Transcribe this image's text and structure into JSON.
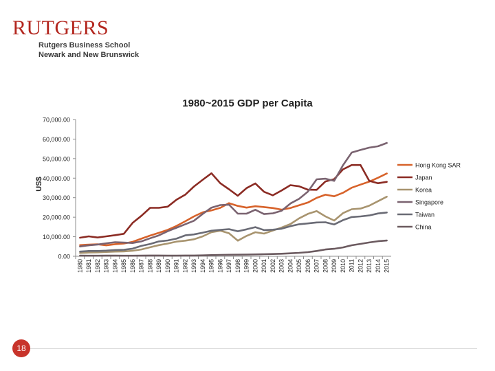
{
  "header": {
    "logo_text": "RUTGERS",
    "school_line1": "Rutgers Business School",
    "school_line2": "Newark and New Brunswick"
  },
  "slide_number": "18",
  "chart_data": {
    "type": "line",
    "title": "1980~2015 GDP per Capita",
    "ylabel": "US$",
    "xlabel": "",
    "ylim": [
      0,
      70000
    ],
    "yticks": [
      "0.00",
      "10,000.00",
      "20,000.00",
      "30,000.00",
      "40,000.00",
      "50,000.00",
      "60,000.00",
      "70,000.00"
    ],
    "grid": false,
    "legend_position": "right",
    "categories": [
      "1980",
      "1981",
      "1982",
      "1983",
      "1984",
      "1985",
      "1986",
      "1987",
      "1988",
      "1989",
      "1990",
      "1991",
      "1992",
      "1993",
      "1994",
      "1995",
      "1996",
      "1997",
      "1998",
      "1999",
      "2000",
      "2001",
      "2002",
      "2003",
      "2004",
      "2005",
      "2006",
      "2007",
      "2008",
      "2009",
      "2010",
      "2011",
      "2012",
      "2013",
      "2014",
      "2015"
    ],
    "series": [
      {
        "name": "Hong Kong SAR",
        "color": "#d7622a",
        "values": [
          5700,
          5990,
          6130,
          5600,
          6200,
          6500,
          7400,
          9000,
          10600,
          12000,
          13500,
          15500,
          17900,
          20400,
          22500,
          23500,
          24800,
          27200,
          25800,
          24900,
          25600,
          25200,
          24700,
          23900,
          24700,
          26100,
          27500,
          29900,
          31500,
          30700,
          32500,
          35100,
          36700,
          38200,
          40200,
          42400
        ]
      },
      {
        "name": "Japan",
        "color": "#8b2b23",
        "values": [
          9500,
          10200,
          9600,
          10200,
          10800,
          11500,
          17100,
          20700,
          24800,
          24800,
          25400,
          28900,
          31500,
          35700,
          39200,
          42500,
          37400,
          34300,
          31000,
          34900,
          37300,
          33000,
          31200,
          33700,
          36400,
          35800,
          34100,
          34000,
          38300,
          39500,
          44500,
          46700,
          46700,
          38600,
          37400,
          38100
        ]
      },
      {
        "name": "Korea",
        "color": "#a8946f",
        "values": [
          1700,
          1900,
          2000,
          2200,
          2400,
          2500,
          2800,
          3500,
          4600,
          5700,
          6500,
          7500,
          8000,
          8700,
          10200,
          12300,
          13100,
          11800,
          8000,
          10400,
          12300,
          11600,
          13200,
          14700,
          16500,
          19400,
          21700,
          23100,
          20400,
          18300,
          22100,
          24100,
          24400,
          25900,
          28200,
          30500
        ]
      },
      {
        "name": "Singapore",
        "color": "#7a6370",
        "values": [
          5000,
          5600,
          6000,
          6600,
          7200,
          7000,
          6800,
          7600,
          9200,
          10700,
          12800,
          14600,
          16400,
          18200,
          21700,
          24900,
          26200,
          26400,
          21800,
          21800,
          23800,
          21600,
          22000,
          23300,
          27000,
          29400,
          33100,
          39400,
          39700,
          38600,
          46600,
          53100,
          54400,
          55600,
          56300,
          58000
        ]
      },
      {
        "name": "Taiwan",
        "color": "#6a6b75",
        "values": [
          2400,
          2700,
          2700,
          2900,
          3200,
          3300,
          3900,
          5300,
          6300,
          7600,
          8100,
          9000,
          10700,
          11200,
          12100,
          13100,
          13500,
          13900,
          12800,
          13800,
          14900,
          13400,
          13600,
          14100,
          15400,
          16400,
          16800,
          17300,
          17400,
          16300,
          18500,
          20100,
          20400,
          20900,
          21900,
          22400
        ]
      },
      {
        "name": "China",
        "color": "#6b5a5f",
        "values": [
          310,
          290,
          280,
          300,
          310,
          290,
          280,
          300,
          370,
          400,
          320,
          330,
          370,
          380,
          470,
          610,
          700,
          780,
          820,
          860,
          950,
          1050,
          1150,
          1290,
          1510,
          1750,
          2100,
          2700,
          3470,
          3830,
          4550,
          5620,
          6320,
          7080,
          7700,
          8070
        ]
      }
    ]
  }
}
